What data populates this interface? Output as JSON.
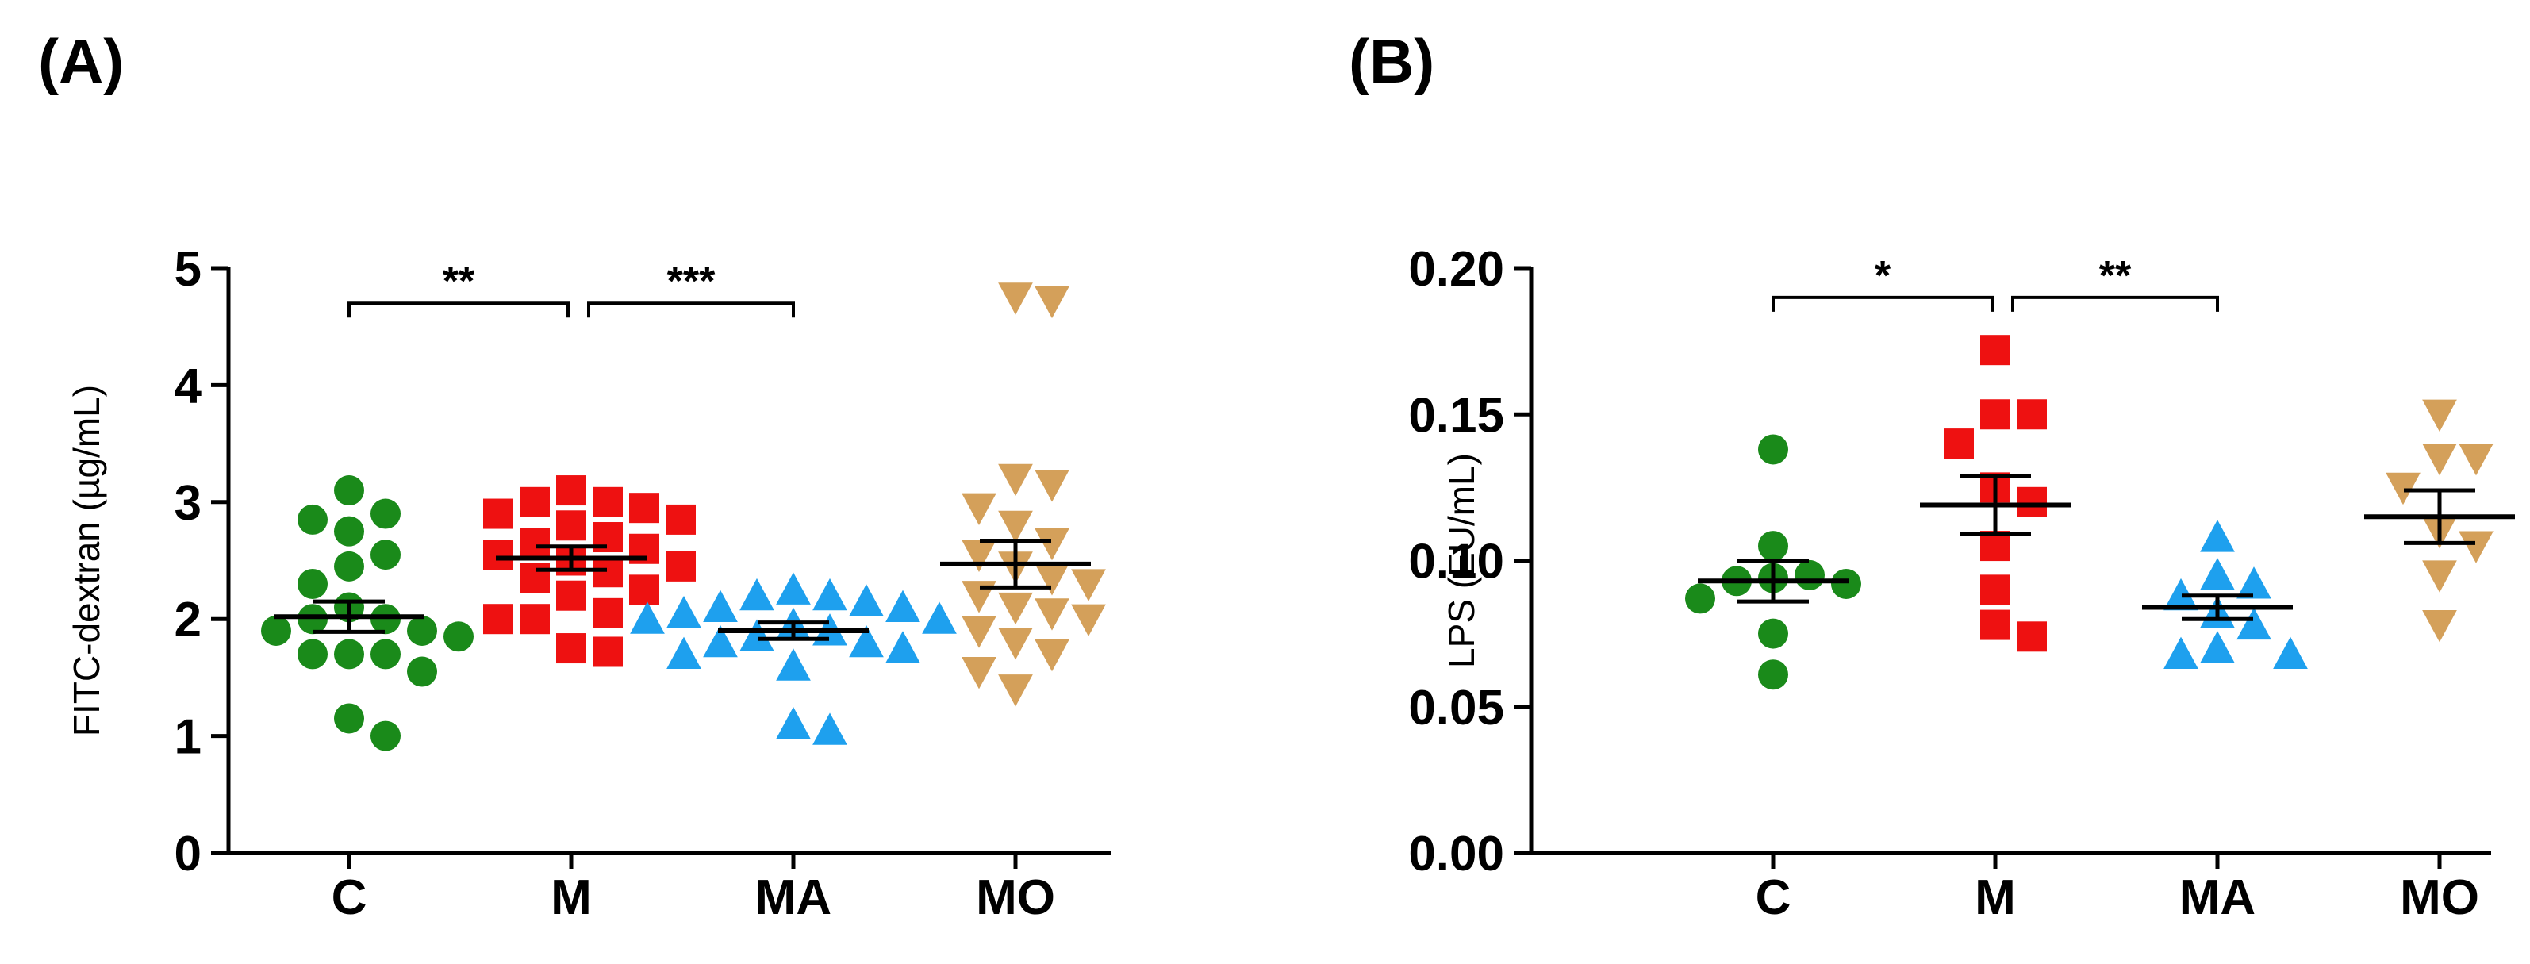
{
  "panels": [
    {
      "label": "(A)"
    },
    {
      "label": "(B)"
    }
  ],
  "chart_data": [
    {
      "type": "scatter",
      "panel": "(A)",
      "title": "",
      "xlabel": "",
      "ylabel": "FITC-dextran (µg/mL)",
      "ylim": [
        0,
        5
      ],
      "yticks": [
        0,
        1,
        2,
        3,
        4,
        5
      ],
      "ytick_labels": [
        "0",
        "1",
        "2",
        "3",
        "4",
        "5"
      ],
      "categories": [
        "C",
        "M",
        "MA",
        "MO"
      ],
      "series": [
        {
          "name": "C",
          "marker": "circle",
          "color": "#1a8a1a",
          "values": [
            3.1,
            2.9,
            2.85,
            2.75,
            2.55,
            2.45,
            2.3,
            2.1,
            2.0,
            2.0,
            1.9,
            1.9,
            1.85,
            1.7,
            1.7,
            1.7,
            1.55,
            1.15,
            1.0
          ],
          "mean": 2.02,
          "sem": 0.13
        },
        {
          "name": "M",
          "marker": "square",
          "color": "#ee1111",
          "values": [
            3.1,
            3.0,
            3.0,
            2.95,
            2.9,
            2.85,
            2.8,
            2.7,
            2.65,
            2.6,
            2.55,
            2.5,
            2.45,
            2.4,
            2.35,
            2.25,
            2.2,
            2.05,
            2.0,
            2.0,
            1.75,
            1.72
          ],
          "mean": 2.52,
          "sem": 0.1
        },
        {
          "name": "MA",
          "marker": "triangle-up",
          "color": "#1ea0ee",
          "values": [
            2.25,
            2.2,
            2.2,
            2.15,
            2.1,
            2.1,
            2.05,
            2.0,
            2.0,
            1.95,
            1.9,
            1.85,
            1.8,
            1.8,
            1.75,
            1.7,
            1.6,
            1.1,
            1.05
          ],
          "mean": 1.9,
          "sem": 0.07
        },
        {
          "name": "MO",
          "marker": "triangle-down",
          "color": "#d4a05a",
          "values": [
            4.75,
            4.72,
            3.2,
            3.15,
            2.95,
            2.8,
            2.65,
            2.55,
            2.45,
            2.35,
            2.3,
            2.2,
            2.1,
            2.05,
            2.0,
            1.9,
            1.8,
            1.7,
            1.55,
            1.4
          ],
          "mean": 2.47,
          "sem": 0.2
        }
      ],
      "significance": [
        {
          "from": "C",
          "to": "M",
          "label": "**",
          "y": 4.7
        },
        {
          "from": "M",
          "to": "MA",
          "label": "***",
          "y": 4.7
        }
      ]
    },
    {
      "type": "scatter",
      "panel": "(B)",
      "title": "",
      "xlabel": "",
      "ylabel": "LPS (EU/mL)",
      "ylim": [
        0,
        0.2
      ],
      "yticks": [
        0,
        0.05,
        0.1,
        0.15,
        0.2
      ],
      "ytick_labels": [
        "0.00",
        "0.05",
        "0.10",
        "0.15",
        "0.20"
      ],
      "categories": [
        "C",
        "M",
        "MA",
        "MO"
      ],
      "series": [
        {
          "name": "C",
          "marker": "circle",
          "color": "#1a8a1a",
          "values": [
            0.138,
            0.105,
            0.095,
            0.094,
            0.093,
            0.092,
            0.087,
            0.075,
            0.061
          ],
          "mean": 0.093,
          "sem": 0.007
        },
        {
          "name": "M",
          "marker": "square",
          "color": "#ee1111",
          "values": [
            0.172,
            0.15,
            0.15,
            0.14,
            0.125,
            0.12,
            0.105,
            0.09,
            0.078,
            0.074
          ],
          "mean": 0.119,
          "sem": 0.01
        },
        {
          "name": "MA",
          "marker": "triangle-up",
          "color": "#1ea0ee",
          "values": [
            0.108,
            0.095,
            0.092,
            0.088,
            0.082,
            0.078,
            0.07,
            0.068,
            0.068
          ],
          "mean": 0.084,
          "sem": 0.004
        },
        {
          "name": "MO",
          "marker": "triangle-down",
          "color": "#d4a05a",
          "values": [
            0.15,
            0.135,
            0.135,
            0.125,
            0.11,
            0.105,
            0.095,
            0.078
          ],
          "mean": 0.115,
          "sem": 0.009
        }
      ],
      "significance": [
        {
          "from": "C",
          "to": "M",
          "label": "*",
          "y": 0.19
        },
        {
          "from": "M",
          "to": "MA",
          "label": "**",
          "y": 0.19
        }
      ]
    }
  ]
}
